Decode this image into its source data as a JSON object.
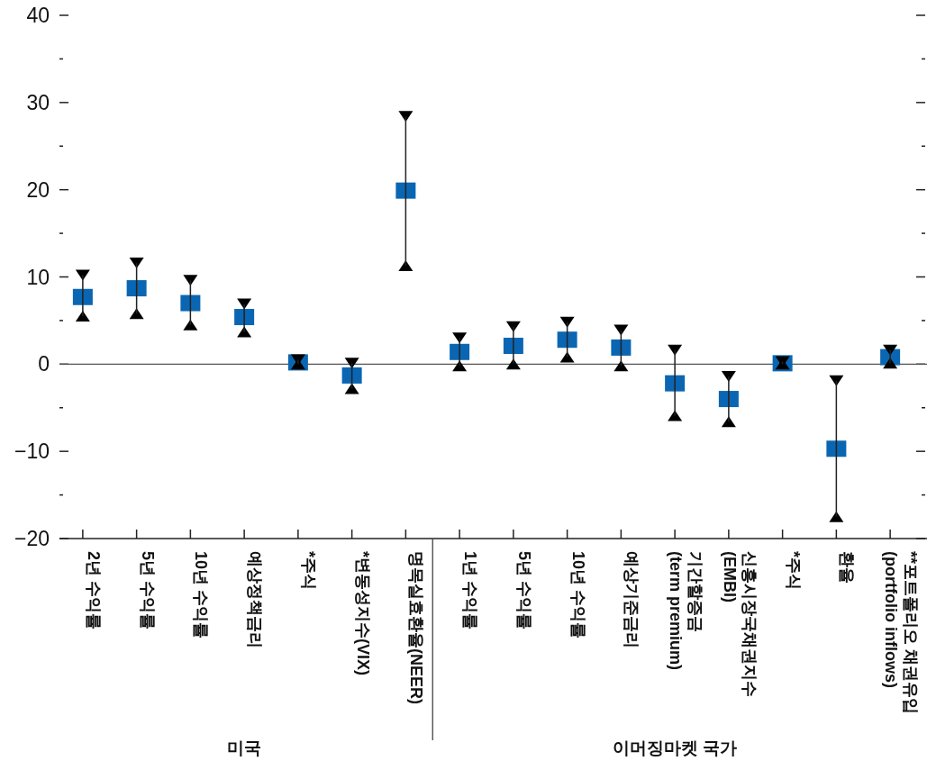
{
  "chart_data": {
    "type": "scatter",
    "marker": "square",
    "grid": false,
    "categories": [
      "2년 수익률",
      "5년 수익률",
      "10년 수익률",
      "예상정책금리",
      "*주식",
      "*변동성지수(VIX)",
      "명목실효환율(NEER)",
      "1년 수익률",
      "5년 수익률",
      "10년 수익률",
      "예상기준금리",
      "기간할증금\n(term premium)",
      "신흥시장국채권지수\n(EMBI)",
      "*주식",
      "환율",
      "**포트폴리오 채권유입\n(portfolio inflows)"
    ],
    "series": [
      {
        "color": "#0a66b2",
        "values": [
          7.7,
          8.7,
          7.0,
          5.4,
          0.2,
          -1.3,
          19.9,
          1.4,
          2.1,
          2.8,
          1.9,
          -2.2,
          -4.0,
          0.1,
          -9.7,
          0.8
        ]
      },
      {
        "color": "#000000",
        "marker": "triangle",
        "values": [
          10.2,
          11.6,
          9.6,
          6.9,
          0.5,
          0.1,
          28.4,
          3.0,
          4.3,
          4.8,
          3.9,
          1.6,
          -1.4,
          0.3,
          -1.9,
          1.6
        ]
      },
      {
        "color": "#000000",
        "marker": "triangle",
        "values": [
          5.5,
          5.8,
          4.5,
          3.7,
          0,
          -2.8,
          11.3,
          -0.2,
          0,
          0.8,
          -0.2,
          -5.9,
          -6.6,
          0,
          -17.5,
          0.1
        ]
      },
      {
        "type": "bar",
        "color": "#222222",
        "base": [
          5.5,
          5.8,
          4.5,
          3.7,
          0,
          -2.8,
          11.3,
          -0.2,
          0,
          0.8,
          -0.2,
          -5.9,
          -6.6,
          0,
          -17.5,
          0.1
        ],
        "values": [
          4.7,
          5.8,
          5.1,
          3.2,
          0.5,
          2.9,
          17.1,
          3.2,
          4.3,
          4.0,
          4.1,
          7.5,
          5.2,
          0.3,
          15.6,
          1.5
        ]
      }
    ],
    "ylim": [
      -20,
      40
    ],
    "yticks": [
      -20,
      {
        "value": -15,
        "label": null
      },
      -10,
      {
        "value": -5,
        "label": null
      },
      0,
      {
        "value": 5,
        "label": null
      },
      10,
      {
        "value": 15,
        "label": null
      },
      20,
      {
        "value": 25,
        "label": null
      },
      30,
      {
        "value": 35,
        "label": null
      },
      40
    ],
    "ref_lines": [
      {
        "axis": "y",
        "value": 0,
        "color": "#555555",
        "line_style": "solid"
      }
    ],
    "annotations": [
      "미국",
      "이머징마켓 국가"
    ]
  }
}
